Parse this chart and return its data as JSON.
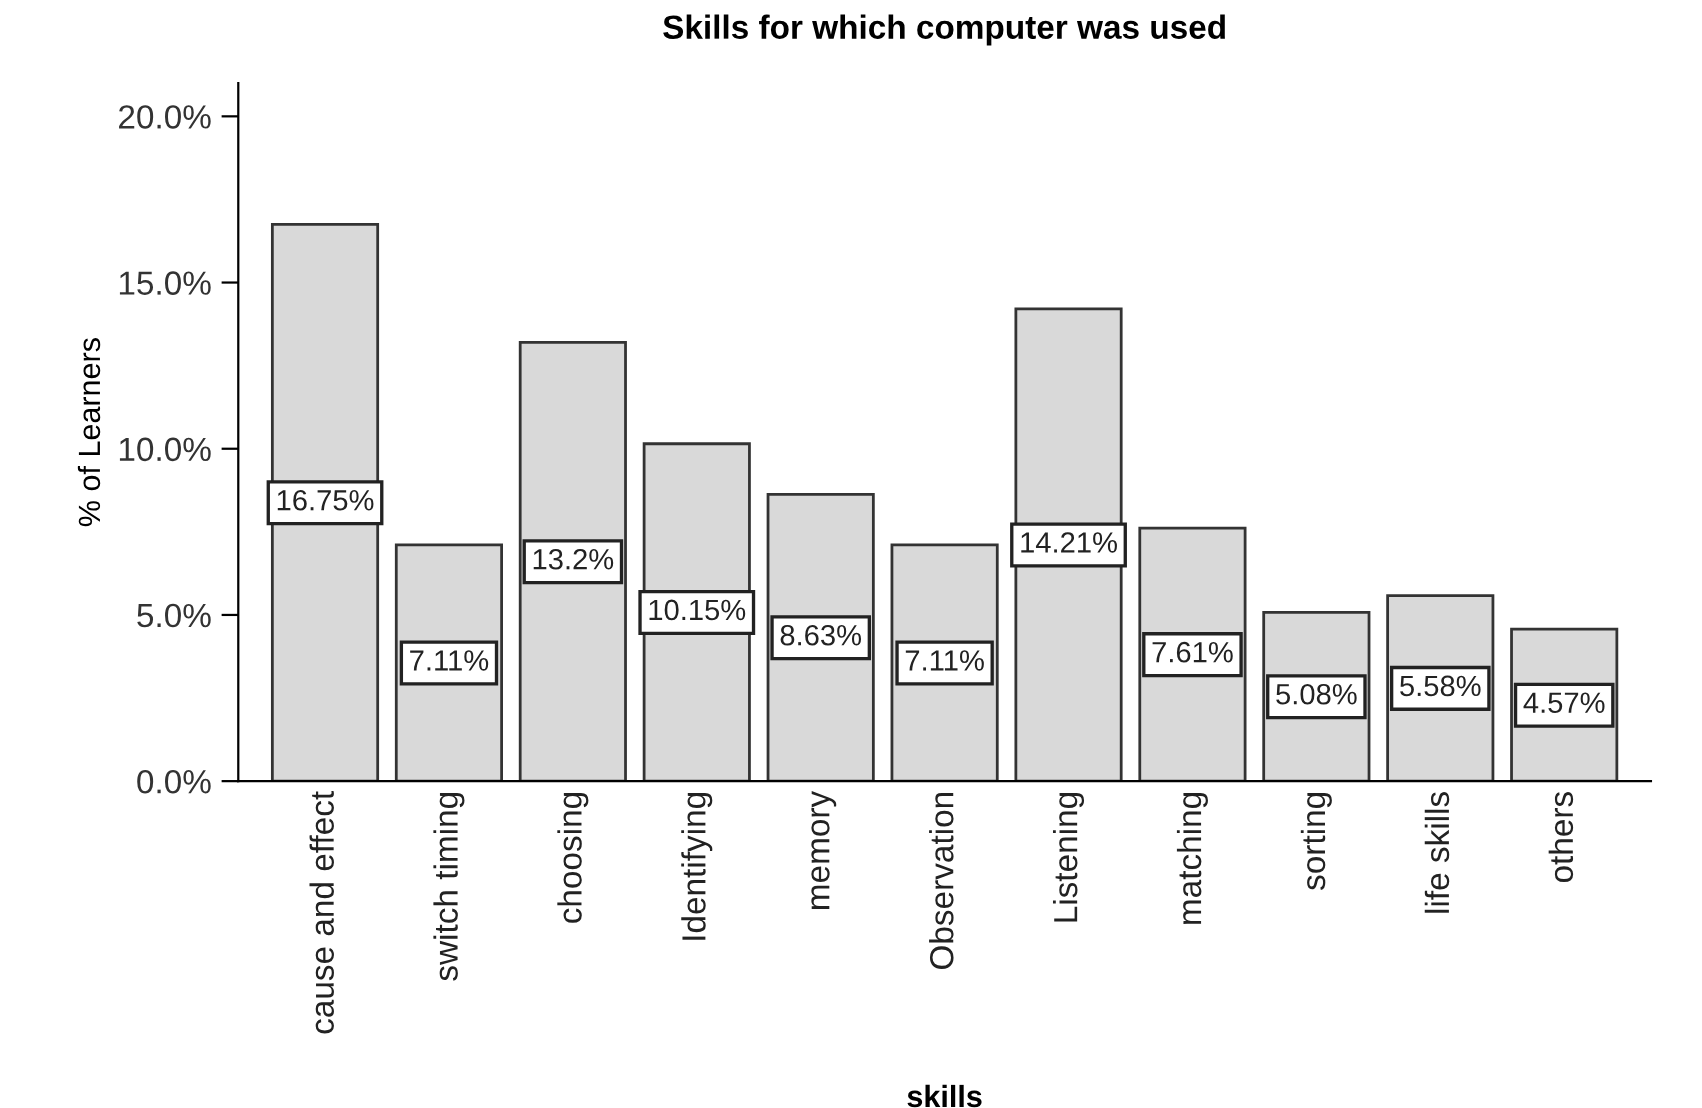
{
  "chart_data": {
    "type": "bar",
    "title": "Skills for which computer was used",
    "xlabel": "skills",
    "ylabel": "% of Learners",
    "categories": [
      "cause and effect",
      "switch timing",
      "choosing",
      "Identifying",
      "memory",
      "Observation",
      "Listening",
      "matching",
      "sorting",
      "life skills",
      "others"
    ],
    "values": [
      16.75,
      7.11,
      13.2,
      10.15,
      8.63,
      7.11,
      14.21,
      7.61,
      5.08,
      5.58,
      4.57
    ],
    "value_labels": [
      "16.75%",
      "7.11%",
      "13.2%",
      "10.15%",
      "8.63%",
      "7.11%",
      "14.21%",
      "7.61%",
      "5.08%",
      "5.58%",
      "4.57%"
    ],
    "color": "#d9d9d9",
    "ylim": [
      0,
      21
    ],
    "yticks": [
      {
        "value": 0,
        "label": "0.0%"
      },
      {
        "value": 5,
        "label": "5.0%"
      },
      {
        "value": 10,
        "label": "10.0%"
      },
      {
        "value": 15,
        "label": "15.0%"
      },
      {
        "value": 20,
        "label": "20.0%"
      }
    ],
    "grid": false
  }
}
